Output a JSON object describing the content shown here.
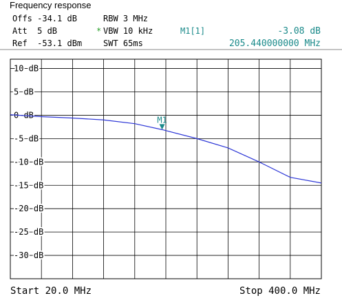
{
  "header": {
    "title": "Frequency response",
    "offs": "Offs -34.1 dB",
    "att": "Att  5 dB",
    "ref": "Ref  -53.1 dBm",
    "rbw": "RBW 3 MHz",
    "vbw_flag": "*",
    "vbw": "VBW 10 kHz",
    "swt": "SWT 65ms",
    "marker_name": "M1[1]",
    "marker_level": "-3.08 dB",
    "marker_freq": "205.440000000 MHz"
  },
  "chart_data": {
    "type": "line",
    "x": [
      20,
      58,
      96,
      134,
      172,
      205.44,
      248,
      286,
      324,
      362,
      400
    ],
    "series": [
      {
        "color": "#2b35d6",
        "values": [
          0.1,
          -0.3,
          -0.6,
          -1.0,
          -1.8,
          -3.08,
          -5.0,
          -7.0,
          -10.0,
          -13.3,
          -14.5
        ]
      }
    ],
    "xlim": [
      20,
      400
    ],
    "xticks": [
      20,
      58,
      96,
      134,
      172,
      210,
      248,
      286,
      324,
      362,
      400
    ],
    "ylim": [
      -35,
      12
    ],
    "yticks": [
      {
        "value": 10,
        "label": "10 dB"
      },
      {
        "value": 5,
        "label": "5 dB"
      },
      {
        "value": 0,
        "label": "0 dB"
      },
      {
        "value": -5,
        "label": "-5 dB"
      },
      {
        "value": -10,
        "label": "-10 dB"
      },
      {
        "value": -15,
        "label": "-15 dB"
      },
      {
        "value": -20,
        "label": "-20 dB"
      },
      {
        "value": -25,
        "label": "-25 dB"
      },
      {
        "value": -30,
        "label": "-30 dB"
      }
    ],
    "grid": true,
    "marker": {
      "label": "M1",
      "x": 205.44,
      "y": -3.08,
      "color": "#1a8a8a"
    },
    "start_label": "Start 20.0 MHz",
    "stop_label": "Stop 400.0 MHz"
  }
}
